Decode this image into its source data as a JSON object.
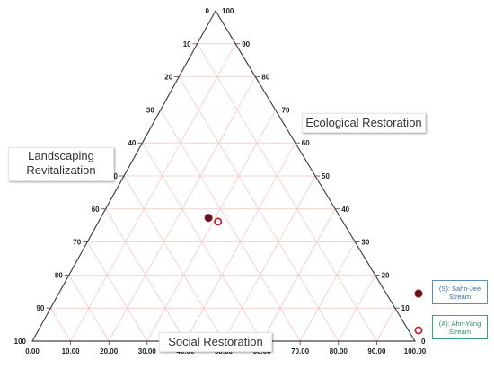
{
  "chart_data": {
    "type": "scatter",
    "subtype": "ternary",
    "axes": {
      "left": {
        "label": "Landscaping Revitalization",
        "ticks": [
          "0",
          "10",
          "20",
          "30",
          "40",
          "50",
          "60",
          "70",
          "80",
          "90",
          "100"
        ]
      },
      "right": {
        "label": "Ecological Restoration",
        "ticks": [
          "0",
          "10",
          "20",
          "30",
          "40",
          "50",
          "60",
          "70",
          "80",
          "90",
          "100"
        ]
      },
      "bottom": {
        "label": "Social Restoration",
        "ticks": [
          "0.00",
          "10.00",
          "20.00",
          "30.00",
          "40.00",
          "50.00",
          "60.00",
          "70.00",
          "80.00",
          "90.00",
          "100.00"
        ]
      }
    },
    "grid": true,
    "grid_step": 10,
    "series": [
      {
        "name": "(S): Sahn-Jee Stream",
        "marker": "filled",
        "color": "#5a1428",
        "points": [
          {
            "landscaping": 49,
            "ecological": 53,
            "social": 40
          }
        ]
      },
      {
        "name": "(A): Ahn-Yang Stream",
        "marker": "hollow",
        "color": "#c0282d",
        "points": [
          {
            "landscaping": 46,
            "ecological": 51,
            "social": 44
          }
        ]
      }
    ],
    "legend_position": "right",
    "legend": [
      {
        "label": "(S): Sahn-Jee Stream",
        "marker": "filled",
        "color": "#5a1428",
        "border": "#5b8fb9"
      },
      {
        "label": "(A): Ahn-Yang Stream",
        "marker": "hollow",
        "color": "#c0282d",
        "border": "#3aa37a"
      }
    ]
  },
  "colors": {
    "grid": "#f0c9c9",
    "frame": "#444444"
  }
}
